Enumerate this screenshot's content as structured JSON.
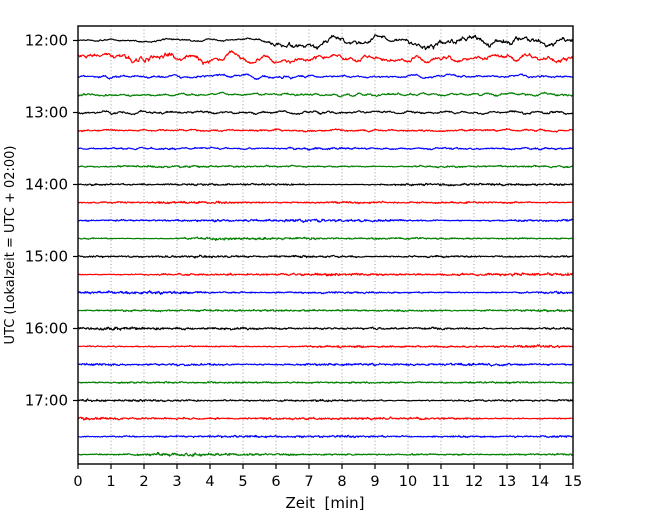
{
  "figure": {
    "background": "#ffffff"
  },
  "chart_data": {
    "type": "line",
    "subtype": "helicorder-dayplot-seismogram",
    "title": "",
    "xlabel": "Zeit  [min]",
    "ylabel": "UTC (Lokalzeit = UTC + 02:00)",
    "xlim": [
      0,
      15
    ],
    "minutes_per_line": 15,
    "grid": {
      "vertical": true,
      "horizontal": false,
      "style": "dotted",
      "color": "#8f8f8f"
    },
    "legend": "none",
    "x_ticks": [
      "0",
      "1",
      "2",
      "3",
      "4",
      "5",
      "6",
      "7",
      "8",
      "9",
      "10",
      "11",
      "12",
      "13",
      "14",
      "15"
    ],
    "y_ticks": [
      {
        "label": "12:00",
        "row": 0
      },
      {
        "label": "13:00",
        "row": 4
      },
      {
        "label": "14:00",
        "row": 8
      },
      {
        "label": "15:00",
        "row": 12
      },
      {
        "label": "16:00",
        "row": 16
      },
      {
        "label": "17:00",
        "row": 20
      }
    ],
    "color_cycle": [
      "#000000",
      "#ff0000",
      "#0000ff",
      "#008000"
    ],
    "traces": [
      {
        "start": "12:00",
        "color": "#000000",
        "activity": "noisy, strong long-period oscillations after min 5.3",
        "amp": 3.2,
        "win": 14,
        "fuzz": 0.3,
        "mod": 0.2,
        "env": [
          [
            0,
            0.5
          ],
          [
            5.3,
            0.55
          ],
          [
            6.3,
            1.55
          ],
          [
            9.5,
            1.3
          ],
          [
            12.0,
            1.75
          ],
          [
            15,
            1.5
          ]
        ]
      },
      {
        "start": "12:15",
        "color": "#ff0000",
        "activity": "strong quasi-periodic oscillations across full trace",
        "amp": 3.5,
        "win": 8,
        "fuzz": 0.3,
        "mod": 0.2,
        "env": [
          [
            0,
            1.0
          ],
          [
            1.2,
            1.25
          ],
          [
            4.2,
            1.15
          ],
          [
            8.0,
            0.85
          ],
          [
            12.0,
            0.9
          ],
          [
            15,
            1.1
          ]
        ]
      },
      {
        "start": "12:30",
        "color": "#0000ff",
        "activity": "moderate wiggles",
        "amp": 1.4,
        "win": 6,
        "fuzz": 0.35,
        "mod": 0.4,
        "env": [
          [
            0,
            1.0
          ],
          [
            15,
            0.9
          ]
        ]
      },
      {
        "start": "12:45",
        "color": "#008000",
        "activity": "moderate wiggles",
        "amp": 1.3,
        "win": 6,
        "fuzz": 0.35,
        "mod": 0.4,
        "env": [
          [
            0,
            1.0
          ],
          [
            12,
            1.1
          ],
          [
            15,
            1.15
          ]
        ]
      },
      {
        "start": "13:00",
        "color": "#000000",
        "activity": "moderate wiggles with bumps",
        "amp": 1.4,
        "win": 7,
        "fuzz": 0.35,
        "mod": 0.4,
        "env": [
          [
            0,
            0.9
          ],
          [
            2.5,
            1.3
          ],
          [
            4.5,
            1.0
          ],
          [
            9.0,
            1.15
          ],
          [
            15,
            1.0
          ]
        ]
      },
      {
        "start": "13:15",
        "color": "#ff0000",
        "activity": "low noise",
        "amp": 0.8,
        "win": 5,
        "fuzz": 0.45,
        "mod": 0.6,
        "env": [
          [
            0,
            1.0
          ],
          [
            15,
            1.0
          ]
        ]
      },
      {
        "start": "13:30",
        "color": "#0000ff",
        "activity": "low noise",
        "amp": 0.8,
        "win": 4,
        "fuzz": 0.45,
        "mod": 0.6,
        "env": [
          [
            0,
            1.0
          ],
          [
            15,
            1.0
          ]
        ]
      },
      {
        "start": "13:45",
        "color": "#008000",
        "activity": "low noise",
        "amp": 0.6,
        "win": 3,
        "fuzz": 0.45,
        "mod": 0.6,
        "env": [
          [
            0,
            1.0
          ],
          [
            15,
            1.0
          ]
        ]
      },
      {
        "start": "14:00",
        "color": "#000000",
        "activity": "quiet fuzz",
        "amp": 0.45,
        "win": 2,
        "fuzz": 0.55,
        "mod": 1.0,
        "env": [
          [
            0,
            1.0
          ],
          [
            15,
            1.0
          ]
        ]
      },
      {
        "start": "14:15",
        "color": "#ff0000",
        "activity": "quiet fuzz",
        "amp": 0.45,
        "win": 2,
        "fuzz": 0.6,
        "mod": 1.0,
        "env": [
          [
            0,
            1.0
          ],
          [
            15,
            1.0
          ]
        ]
      },
      {
        "start": "14:30",
        "color": "#0000ff",
        "activity": "quiet fuzz",
        "amp": 0.5,
        "win": 2,
        "fuzz": 0.6,
        "mod": 1.0,
        "env": [
          [
            0,
            1.0
          ],
          [
            15,
            1.0
          ]
        ]
      },
      {
        "start": "14:45",
        "color": "#008000",
        "activity": "quiet fuzz",
        "amp": 0.45,
        "win": 2,
        "fuzz": 0.55,
        "mod": 1.0,
        "env": [
          [
            0,
            1.0
          ],
          [
            15,
            1.0
          ]
        ]
      },
      {
        "start": "15:00",
        "color": "#000000",
        "activity": "quiet fuzz",
        "amp": 0.45,
        "win": 2,
        "fuzz": 0.55,
        "mod": 1.0,
        "env": [
          [
            0,
            1.0
          ],
          [
            15,
            1.0
          ]
        ]
      },
      {
        "start": "15:15",
        "color": "#ff0000",
        "activity": "quiet fuzz",
        "amp": 0.5,
        "win": 2,
        "fuzz": 0.6,
        "mod": 1.0,
        "env": [
          [
            0,
            1.0
          ],
          [
            15,
            1.0
          ]
        ]
      },
      {
        "start": "15:30",
        "color": "#0000ff",
        "activity": "quiet fuzz",
        "amp": 0.45,
        "win": 2,
        "fuzz": 0.6,
        "mod": 1.0,
        "env": [
          [
            0,
            1.0
          ],
          [
            15,
            1.0
          ]
        ]
      },
      {
        "start": "15:45",
        "color": "#008000",
        "activity": "quiet fuzz",
        "amp": 0.45,
        "win": 2,
        "fuzz": 0.55,
        "mod": 1.0,
        "env": [
          [
            0,
            1.0
          ],
          [
            15,
            1.0
          ]
        ]
      },
      {
        "start": "16:00",
        "color": "#000000",
        "activity": "quiet fuzz",
        "amp": 0.5,
        "win": 2,
        "fuzz": 0.6,
        "mod": 1.0,
        "env": [
          [
            0,
            1.0
          ],
          [
            15,
            1.0
          ]
        ]
      },
      {
        "start": "16:15",
        "color": "#ff0000",
        "activity": "quiet fuzz",
        "amp": 0.45,
        "win": 2,
        "fuzz": 0.6,
        "mod": 1.0,
        "env": [
          [
            0,
            1.0
          ],
          [
            15,
            1.0
          ]
        ]
      },
      {
        "start": "16:30",
        "color": "#0000ff",
        "activity": "quiet fuzz",
        "amp": 0.45,
        "win": 2,
        "fuzz": 0.55,
        "mod": 1.0,
        "env": [
          [
            0,
            1.0
          ],
          [
            15,
            1.0
          ]
        ]
      },
      {
        "start": "16:45",
        "color": "#008000",
        "activity": "quiet fuzz",
        "amp": 0.45,
        "win": 2,
        "fuzz": 0.55,
        "mod": 1.0,
        "env": [
          [
            0,
            1.0
          ],
          [
            15,
            1.0
          ]
        ]
      },
      {
        "start": "17:00",
        "color": "#000000",
        "activity": "quiet fuzz",
        "amp": 0.45,
        "win": 2,
        "fuzz": 0.55,
        "mod": 1.0,
        "env": [
          [
            0,
            1.0
          ],
          [
            15,
            1.0
          ]
        ]
      },
      {
        "start": "17:15",
        "color": "#ff0000",
        "activity": "quiet fuzz",
        "amp": 0.5,
        "win": 2,
        "fuzz": 0.6,
        "mod": 1.0,
        "env": [
          [
            0,
            1.0
          ],
          [
            15,
            1.0
          ]
        ]
      },
      {
        "start": "17:30",
        "color": "#0000ff",
        "activity": "quiet fuzz",
        "amp": 0.45,
        "win": 2,
        "fuzz": 0.55,
        "mod": 1.0,
        "env": [
          [
            0,
            1.0
          ],
          [
            15,
            1.0
          ]
        ]
      },
      {
        "start": "17:45",
        "color": "#008000",
        "activity": "quiet fuzz",
        "amp": 0.45,
        "win": 2,
        "fuzz": 0.55,
        "mod": 1.0,
        "env": [
          [
            0,
            1.0
          ],
          [
            15,
            1.0
          ]
        ]
      }
    ]
  }
}
